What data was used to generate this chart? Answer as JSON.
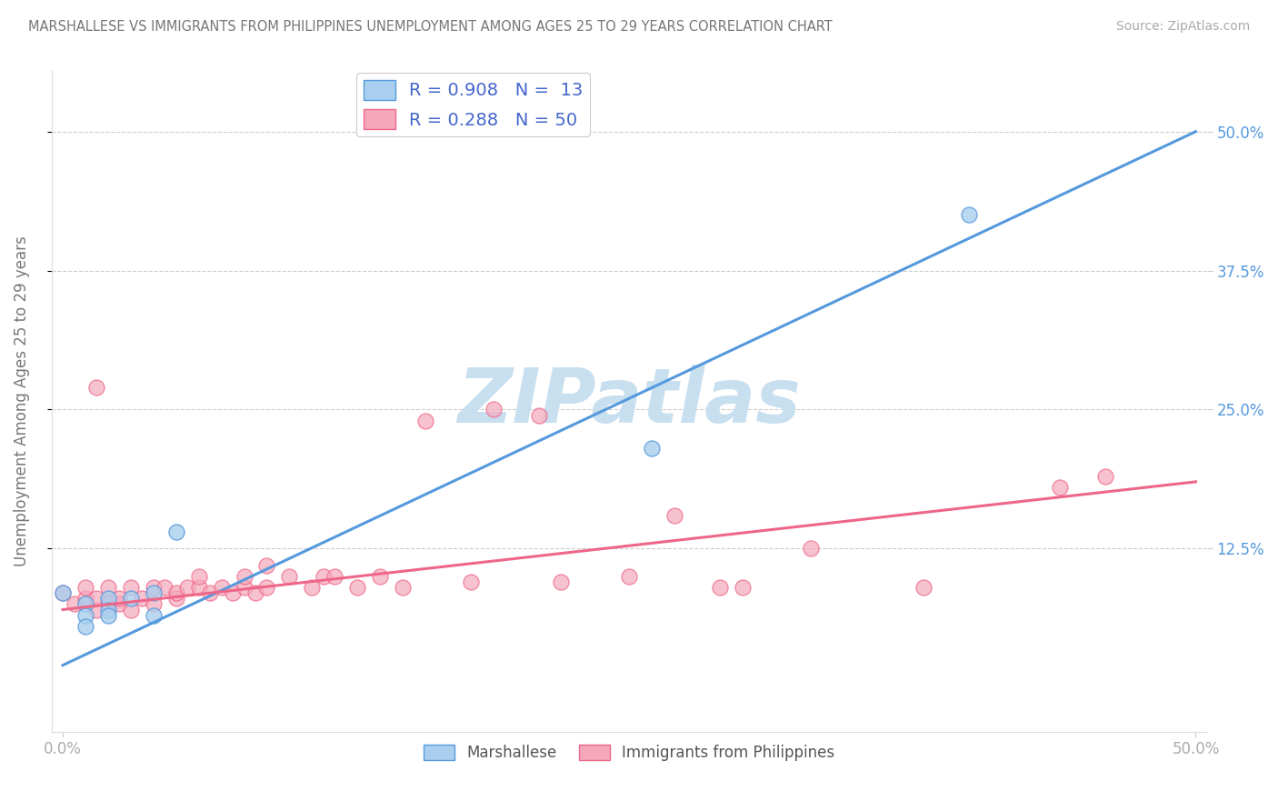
{
  "title": "MARSHALLESE VS IMMIGRANTS FROM PHILIPPINES UNEMPLOYMENT AMONG AGES 25 TO 29 YEARS CORRELATION CHART",
  "source": "Source: ZipAtlas.com",
  "ylabel": "Unemployment Among Ages 25 to 29 years",
  "xlim": [
    -0.005,
    0.505
  ],
  "ylim": [
    -0.04,
    0.555
  ],
  "xtick_vals": [
    0.0,
    0.5
  ],
  "xtick_labels": [
    "0.0%",
    "50.0%"
  ],
  "ytick_vals": [
    0.125,
    0.25,
    0.375,
    0.5
  ],
  "right_ytick_labels": [
    "12.5%",
    "25.0%",
    "37.5%",
    "50.0%"
  ],
  "legend1_labels": [
    "R = 0.908   N =  13",
    "R = 0.288   N = 50"
  ],
  "legend2_labels": [
    "Marshallese",
    "Immigrants from Philippines"
  ],
  "marshallese_color": "#aacfee",
  "philippines_color": "#f5a8bb",
  "marshallese_line_color": "#5599dd",
  "philippines_line_color": "#ee6688",
  "watermark_text": "ZIPatlas",
  "watermark_color": "#c8dff0",
  "grid_color": "#cccccc",
  "title_color": "#777777",
  "source_color": "#aaaaaa",
  "axis_label_color": "#777777",
  "tick_color": "#aaaaaa",
  "right_tick_color": "#5599dd",
  "marshallese_x": [
    0.0,
    0.01,
    0.01,
    0.01,
    0.02,
    0.02,
    0.02,
    0.03,
    0.04,
    0.04,
    0.05,
    0.26,
    0.4
  ],
  "marshallese_y": [
    0.085,
    0.075,
    0.065,
    0.055,
    0.08,
    0.07,
    0.065,
    0.08,
    0.085,
    0.065,
    0.14,
    0.215,
    0.425
  ],
  "philippines_x": [
    0.0,
    0.005,
    0.01,
    0.01,
    0.015,
    0.015,
    0.015,
    0.02,
    0.02,
    0.025,
    0.025,
    0.03,
    0.03,
    0.035,
    0.04,
    0.04,
    0.045,
    0.05,
    0.05,
    0.055,
    0.06,
    0.06,
    0.065,
    0.07,
    0.075,
    0.08,
    0.08,
    0.085,
    0.09,
    0.09,
    0.1,
    0.11,
    0.115,
    0.12,
    0.13,
    0.14,
    0.15,
    0.16,
    0.18,
    0.19,
    0.21,
    0.22,
    0.25,
    0.27,
    0.29,
    0.3,
    0.33,
    0.38,
    0.44,
    0.46
  ],
  "philippines_y": [
    0.085,
    0.075,
    0.08,
    0.09,
    0.07,
    0.08,
    0.27,
    0.075,
    0.09,
    0.075,
    0.08,
    0.07,
    0.09,
    0.08,
    0.075,
    0.09,
    0.09,
    0.08,
    0.085,
    0.09,
    0.09,
    0.1,
    0.085,
    0.09,
    0.085,
    0.09,
    0.1,
    0.085,
    0.09,
    0.11,
    0.1,
    0.09,
    0.1,
    0.1,
    0.09,
    0.1,
    0.09,
    0.24,
    0.095,
    0.25,
    0.245,
    0.095,
    0.1,
    0.155,
    0.09,
    0.09,
    0.125,
    0.09,
    0.18,
    0.19
  ],
  "blue_line_x": [
    0.0,
    0.5
  ],
  "blue_line_y": [
    0.02,
    0.5
  ],
  "pink_line_x": [
    0.0,
    0.5
  ],
  "pink_line_y": [
    0.07,
    0.185
  ]
}
